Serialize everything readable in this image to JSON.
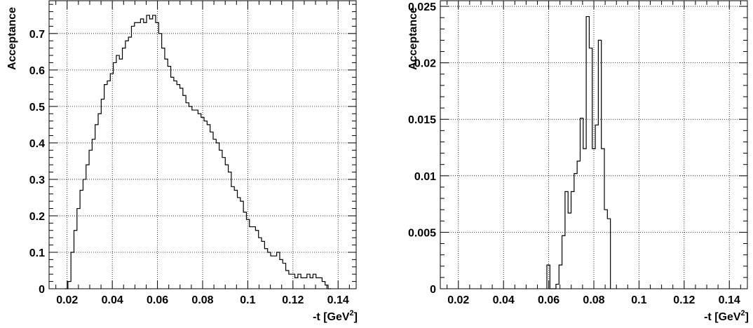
{
  "chart_data": [
    {
      "type": "step-histogram",
      "xlabel": "-t [GeV",
      "xlabel_sup": "2",
      "xlabel_end": "]",
      "ylabel": "Acceptance",
      "xlim": [
        0.012,
        0.148
      ],
      "ylim": [
        0,
        0.79
      ],
      "grid": true,
      "x_ticks": [
        0.02,
        0.04,
        0.06,
        0.08,
        0.1,
        0.12,
        0.14
      ],
      "x_tick_labels": [
        "0.02",
        "0.04",
        "0.06",
        "0.08",
        "0.1",
        "0.12",
        "0.14"
      ],
      "y_ticks": [
        0,
        0.1,
        0.2,
        0.3,
        0.4,
        0.5,
        0.6,
        0.7
      ],
      "y_tick_labels": [
        "0",
        "0.1",
        "0.2",
        "0.3",
        "0.4",
        "0.5",
        "0.6",
        "0.7"
      ],
      "bin_start": 0.019,
      "bin_width": 0.00134,
      "values": [
        0.0,
        0.02,
        0.1,
        0.16,
        0.22,
        0.27,
        0.3,
        0.34,
        0.38,
        0.41,
        0.45,
        0.48,
        0.52,
        0.56,
        0.57,
        0.59,
        0.62,
        0.64,
        0.63,
        0.66,
        0.68,
        0.69,
        0.72,
        0.73,
        0.73,
        0.74,
        0.73,
        0.75,
        0.74,
        0.75,
        0.73,
        0.7,
        0.66,
        0.63,
        0.61,
        0.58,
        0.57,
        0.56,
        0.55,
        0.53,
        0.51,
        0.5,
        0.49,
        0.49,
        0.48,
        0.47,
        0.46,
        0.45,
        0.43,
        0.41,
        0.4,
        0.38,
        0.36,
        0.34,
        0.32,
        0.28,
        0.27,
        0.25,
        0.24,
        0.21,
        0.19,
        0.17,
        0.17,
        0.16,
        0.14,
        0.13,
        0.11,
        0.1,
        0.09,
        0.09,
        0.1,
        0.08,
        0.07,
        0.05,
        0.04,
        0.04,
        0.03,
        0.04,
        0.03,
        0.03,
        0.04,
        0.03,
        0.04,
        0.03,
        0.03,
        0.02,
        0.01,
        0.0
      ]
    },
    {
      "type": "step-histogram",
      "xlabel": "-t [GeV",
      "xlabel_sup": "2",
      "xlabel_end": "]",
      "ylabel": "Acceptance",
      "xlim": [
        0.012,
        0.148
      ],
      "ylim": [
        0,
        0.0255
      ],
      "grid": true,
      "x_ticks": [
        0.02,
        0.04,
        0.06,
        0.08,
        0.1,
        0.12,
        0.14
      ],
      "x_tick_labels": [
        "0.02",
        "0.04",
        "0.06",
        "0.08",
        "0.1",
        "0.12",
        "0.14"
      ],
      "y_ticks": [
        0,
        0.005,
        0.01,
        0.015,
        0.02,
        0.025
      ],
      "y_tick_labels": [
        "0",
        "0.005",
        "0.01",
        "0.015",
        "0.02",
        "0.025"
      ],
      "bin_start": 0.0592,
      "bin_width": 0.00134,
      "values": [
        0.0021,
        0.0,
        0.0,
        0.0004,
        0.0021,
        0.0047,
        0.0086,
        0.0067,
        0.0086,
        0.0102,
        0.0113,
        0.0151,
        0.0124,
        0.0241,
        0.0213,
        0.0124,
        0.0145,
        0.022,
        0.0124,
        0.007,
        0.0062
      ]
    }
  ]
}
